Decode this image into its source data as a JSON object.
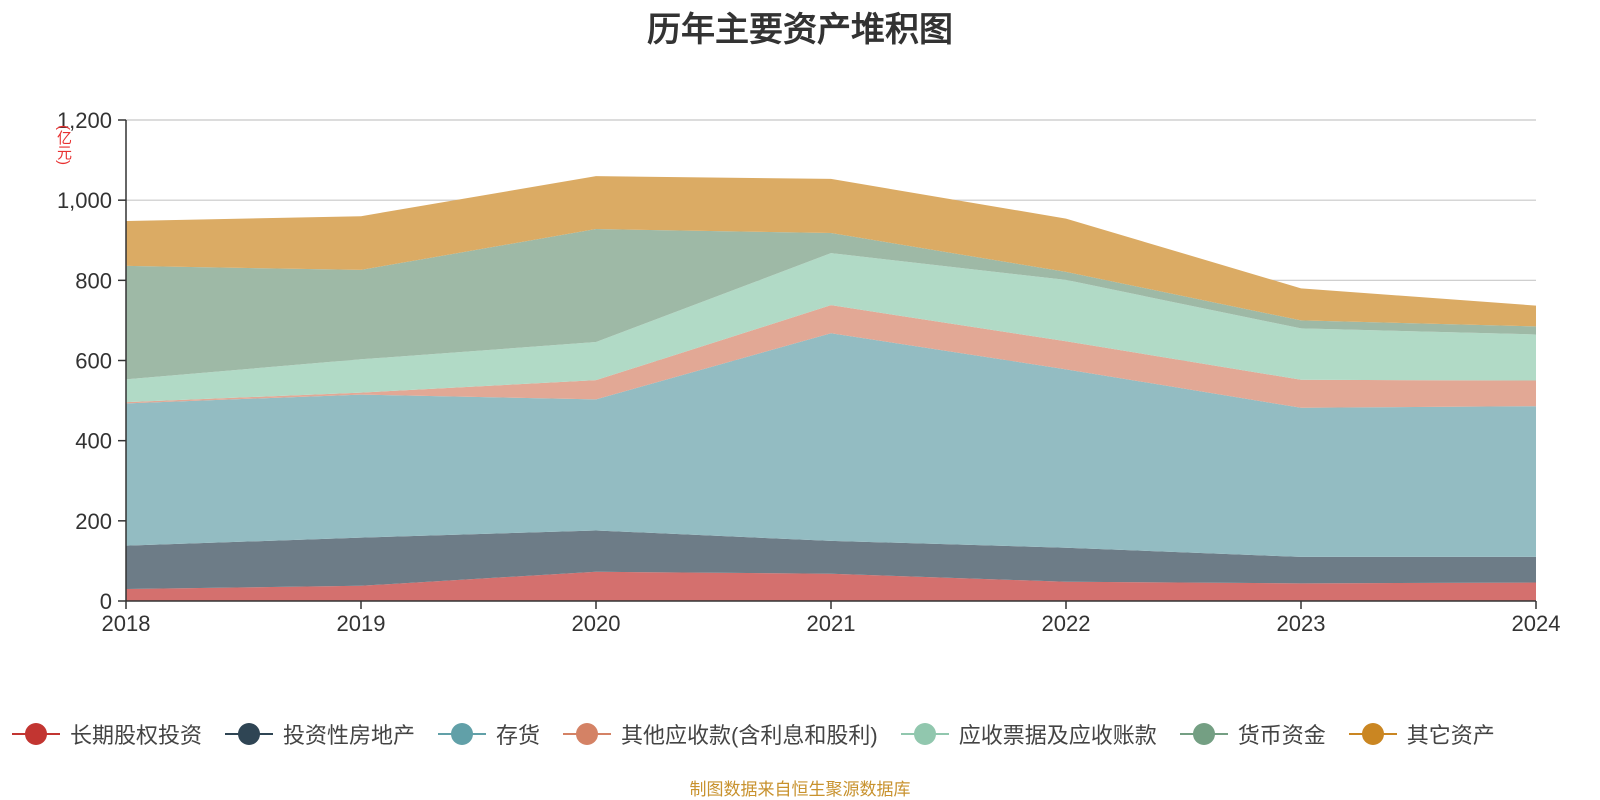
{
  "chart_data": {
    "type": "area",
    "stacked": true,
    "title": "历年主要资产堆积图",
    "unit": "(亿元)",
    "x": [
      "2018",
      "2019",
      "2020",
      "2021",
      "2022",
      "2023",
      "2024"
    ],
    "ylim": [
      0,
      1200
    ],
    "yticks": [
      "0",
      "200",
      "400",
      "600",
      "800",
      "1,000",
      "1,200"
    ],
    "ytick_values": [
      0,
      200,
      400,
      600,
      800,
      1000,
      1200
    ],
    "grid": true,
    "legend_position": "bottom",
    "series": [
      {
        "name": "长期股权投资",
        "color": "#c23531",
        "fill": "#d4706e",
        "values": [
          30,
          38,
          73,
          68,
          48,
          44,
          46
        ]
      },
      {
        "name": "投资性房地产",
        "color": "#2f4554",
        "fill": "#6d7c87",
        "values": [
          108,
          120,
          103,
          82,
          85,
          66,
          64
        ]
      },
      {
        "name": "存货",
        "color": "#61a0a8",
        "fill": "#93bcc2",
        "values": [
          355,
          357,
          327,
          518,
          445,
          372,
          376
        ]
      },
      {
        "name": "其他应收款(含利息和股利)",
        "color": "#d48265",
        "fill": "#e2a895",
        "values": [
          3,
          5,
          48,
          70,
          70,
          70,
          64
        ]
      },
      {
        "name": "应收票据及应收账款",
        "color": "#91c7ae",
        "fill": "#b1dac6",
        "values": [
          57,
          83,
          95,
          130,
          153,
          128,
          115
        ]
      },
      {
        "name": "货币资金",
        "color": "#749f83",
        "fill": "#9eb9a6",
        "values": [
          283,
          223,
          282,
          50,
          20,
          20,
          20
        ]
      },
      {
        "name": "其它资产",
        "color": "#ca8622",
        "fill": "#dbab64",
        "values": [
          112,
          134,
          132,
          135,
          133,
          80,
          52
        ]
      }
    ]
  },
  "source_note": "制图数据来自恒生聚源数据库"
}
